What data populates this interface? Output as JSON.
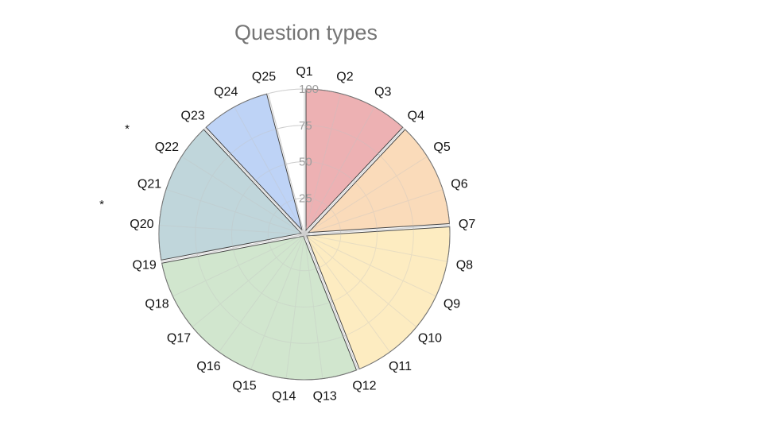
{
  "chart_data": {
    "type": "polar-area",
    "title": "Question types",
    "categories": [
      "Q1",
      "Q2",
      "Q3",
      "Q4",
      "Q5",
      "Q6",
      "Q7",
      "Q8",
      "Q9",
      "Q10",
      "Q11",
      "Q12",
      "Q13",
      "Q14",
      "Q15",
      "Q16",
      "Q17",
      "Q18",
      "Q19",
      "Q20",
      "Q21",
      "Q22",
      "Q23",
      "Q24",
      "Q25"
    ],
    "rlim": [
      0,
      100
    ],
    "r_ticks": [
      25,
      50,
      75,
      100
    ],
    "grid": true,
    "sectors": [
      {
        "start": "Q1",
        "end": "Q4",
        "value": 100,
        "color": "#eaa3a6"
      },
      {
        "start": "Q4",
        "end": "Q7",
        "value": 100,
        "color": "#f9d5ae"
      },
      {
        "start": "Q7",
        "end": "Q12",
        "value": 100,
        "color": "#fde9b6"
      },
      {
        "start": "Q12",
        "end": "Q19",
        "value": 100,
        "color": "#c9e2c5"
      },
      {
        "start": "Q19",
        "end": "Q23",
        "value": 100,
        "color": "#b5cfd5"
      },
      {
        "start": "Q23",
        "end": "Q25",
        "value": 100,
        "color": "#b3cbf4"
      }
    ],
    "annotations": [
      "*",
      "*"
    ]
  }
}
